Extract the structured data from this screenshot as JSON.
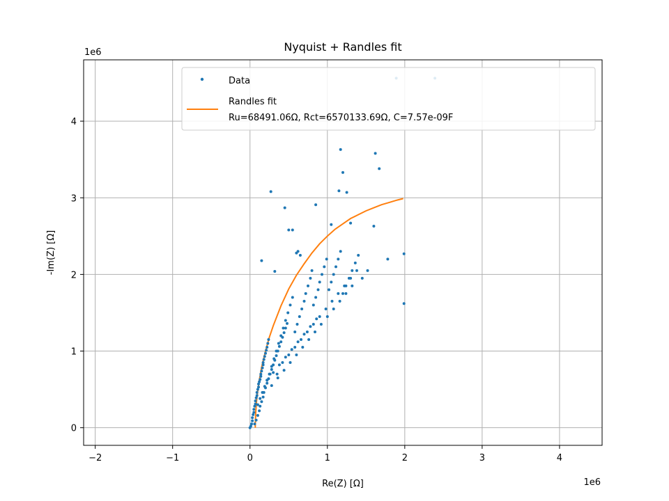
{
  "chart_data": {
    "type": "scatter",
    "title": "Nyquist + Randles fit",
    "xlabel": "Re(Z) [Ω]",
    "ylabel": "-Im(Z) [Ω]",
    "x_offset_label": "1e6",
    "y_offset_label": "1e6",
    "xlim": [
      -2.15,
      4.55
    ],
    "ylim": [
      -0.23,
      4.8
    ],
    "x_ticks": [
      -2,
      -1,
      0,
      1,
      2,
      3,
      4
    ],
    "y_ticks": [
      0,
      1,
      2,
      3,
      4
    ],
    "grid": true,
    "legend_placement": "upper-right",
    "colors": {
      "data": "#1f77b4",
      "fit": "#ff7f0e",
      "grid": "#b0b0b0"
    },
    "series": [
      {
        "name": "Data",
        "kind": "points",
        "x": [
          0.0,
          0.01,
          0.02,
          0.03,
          0.03,
          0.04,
          0.05,
          0.05,
          0.06,
          0.07,
          0.07,
          0.08,
          0.09,
          0.09,
          0.1,
          0.11,
          0.11,
          0.12,
          0.13,
          0.14,
          0.14,
          0.15,
          0.16,
          0.17,
          0.17,
          0.18,
          0.19,
          0.2,
          0.21,
          0.22,
          0.23,
          0.24,
          0.06,
          0.08,
          0.1,
          0.12,
          0.13,
          0.15,
          0.17,
          0.18,
          0.2,
          0.22,
          0.24,
          0.26,
          0.28,
          0.3,
          0.32,
          0.34,
          0.36,
          0.38,
          0.4,
          0.42,
          0.44,
          0.46,
          0.48,
          0.1,
          0.13,
          0.16,
          0.19,
          0.22,
          0.25,
          0.28,
          0.31,
          0.34,
          0.37,
          0.4,
          0.43,
          0.46,
          0.49,
          0.52,
          0.55,
          0.58,
          0.61,
          0.64,
          0.67,
          0.7,
          0.72,
          0.75,
          0.78,
          0.8,
          0.82,
          0.85,
          0.88,
          0.9,
          0.93,
          0.96,
          0.99,
          1.02,
          1.05,
          1.08,
          1.11,
          1.14,
          1.17,
          1.2,
          1.24,
          1.28,
          1.32,
          1.36,
          1.4,
          1.45,
          1.52,
          0.15,
          0.27,
          0.32,
          0.45,
          0.5,
          0.55,
          0.6,
          0.62,
          0.65,
          0.85,
          1.05,
          1.15,
          1.17,
          1.2,
          1.25,
          1.3,
          1.62,
          1.67,
          1.6,
          1.78,
          1.99,
          1.99,
          1.89,
          2.39,
          0.35,
          0.42,
          0.5,
          0.58,
          0.66,
          0.74,
          0.82,
          0.9,
          0.98,
          1.06,
          1.14,
          1.22,
          1.3,
          1.38,
          0.28,
          0.36,
          0.44,
          0.52,
          0.6,
          0.68,
          0.76,
          0.84,
          0.92,
          1.0,
          1.08,
          1.16,
          1.24,
          1.32,
          0.22,
          0.3,
          0.38,
          0.46,
          0.54,
          0.62,
          0.7,
          0.78,
          0.86
        ],
        "y": [
          0.0,
          0.02,
          0.05,
          0.09,
          0.13,
          0.17,
          0.2,
          0.24,
          0.28,
          0.31,
          0.35,
          0.39,
          0.42,
          0.46,
          0.5,
          0.53,
          0.57,
          0.6,
          0.63,
          0.67,
          0.7,
          0.74,
          0.78,
          0.82,
          0.85,
          0.89,
          0.93,
          0.97,
          1.01,
          1.05,
          1.1,
          1.15,
          0.05,
          0.1,
          0.16,
          0.22,
          0.28,
          0.34,
          0.4,
          0.46,
          0.52,
          0.58,
          0.64,
          0.7,
          0.76,
          0.82,
          0.88,
          0.94,
          1.0,
          1.06,
          1.12,
          1.18,
          1.24,
          1.3,
          1.36,
          0.3,
          0.38,
          0.46,
          0.54,
          0.62,
          0.7,
          0.8,
          0.9,
          1.0,
          1.1,
          1.2,
          1.3,
          1.4,
          1.5,
          1.6,
          1.7,
          1.25,
          1.35,
          1.45,
          1.55,
          1.65,
          1.75,
          1.85,
          1.95,
          2.05,
          1.6,
          1.7,
          1.8,
          1.9,
          2.0,
          2.1,
          2.2,
          1.8,
          1.9,
          2.0,
          2.1,
          2.2,
          2.3,
          1.75,
          1.85,
          1.95,
          2.05,
          2.15,
          2.25,
          1.95,
          2.05,
          2.18,
          3.08,
          2.04,
          2.87,
          2.58,
          2.58,
          2.28,
          2.3,
          2.25,
          2.91,
          2.65,
          3.09,
          3.63,
          3.33,
          3.07,
          2.67,
          3.58,
          3.38,
          2.63,
          2.2,
          2.27,
          1.62,
          4.56,
          4.56,
          0.7,
          0.85,
          0.95,
          1.05,
          1.15,
          1.25,
          1.35,
          1.45,
          1.55,
          1.65,
          1.75,
          1.85,
          1.95,
          2.05,
          0.55,
          0.65,
          0.75,
          0.85,
          0.95,
          1.05,
          1.15,
          1.25,
          1.35,
          1.45,
          1.55,
          1.65,
          1.75,
          1.85,
          0.62,
          0.72,
          0.82,
          0.92,
          1.02,
          1.12,
          1.22,
          1.32,
          1.42
        ]
      },
      {
        "name": "Randles fit",
        "kind": "line",
        "label_line2": "Ru=68491.06Ω, Rct=6570133.69Ω, C=7.57e-09F",
        "x": [
          0.068,
          0.07,
          0.075,
          0.085,
          0.1,
          0.12,
          0.15,
          0.2,
          0.25,
          0.3,
          0.4,
          0.5,
          0.6,
          0.7,
          0.8,
          0.9,
          1.0,
          1.1,
          1.2,
          1.3,
          1.4,
          1.5,
          1.6,
          1.7,
          1.8,
          1.9,
          1.98
        ],
        "y": [
          0.0,
          0.1,
          0.22,
          0.35,
          0.48,
          0.62,
          0.79,
          1.0,
          1.18,
          1.33,
          1.59,
          1.81,
          1.99,
          2.14,
          2.28,
          2.4,
          2.5,
          2.59,
          2.66,
          2.73,
          2.78,
          2.83,
          2.87,
          2.91,
          2.94,
          2.97,
          2.99
        ]
      }
    ]
  }
}
